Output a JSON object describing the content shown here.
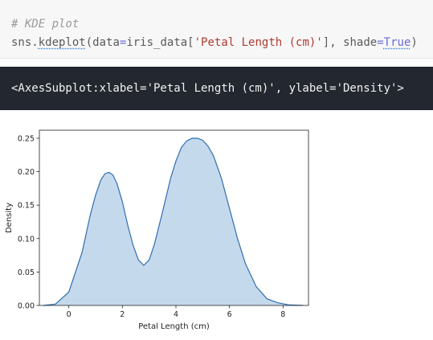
{
  "code_cell": {
    "comment": "# KDE plot",
    "func": "sns.",
    "func_name": "kdeplot",
    "open": "(",
    "arg1_name": "data",
    "eq1": "=",
    "arg1_obj": "iris_data[",
    "arg1_str": "'Petal Length (cm)'",
    "arg1_close": "], ",
    "arg2_name": "shade",
    "eq2": "=",
    "arg2_val": "True",
    "close": ")"
  },
  "output": {
    "text": "<AxesSubplot:xlabel='Petal Length (cm)', ylabel='Density'>"
  },
  "colors": {
    "line": "#2f6fae",
    "fill": "#c5d9ec"
  },
  "chart_data": {
    "type": "area",
    "xlabel": "Petal Length (cm)",
    "ylabel": "Density",
    "xlim": [
      -1.1,
      8.95
    ],
    "ylim": [
      0,
      0.262
    ],
    "xticks": [
      0,
      2,
      4,
      6,
      8
    ],
    "yticks": [
      0.0,
      0.05,
      0.1,
      0.15,
      0.2,
      0.25
    ],
    "ytick_labels": [
      "0.00",
      "0.05",
      "0.10",
      "0.15",
      "0.20",
      "0.25"
    ],
    "grid": false,
    "series": [
      {
        "x": [
          -0.95,
          -0.5,
          0,
          0.5,
          0.8,
          1.0,
          1.2,
          1.35,
          1.5,
          1.65,
          1.8,
          2.0,
          2.2,
          2.4,
          2.6,
          2.8,
          3.0,
          3.2,
          3.5,
          3.8,
          4.0,
          4.2,
          4.4,
          4.6,
          4.8,
          5.0,
          5.2,
          5.4,
          5.7,
          6.0,
          6.3,
          6.6,
          7.0,
          7.4,
          7.8,
          8.2,
          8.75
        ],
        "y": [
          0.0,
          0.002,
          0.02,
          0.08,
          0.135,
          0.165,
          0.188,
          0.197,
          0.199,
          0.195,
          0.182,
          0.155,
          0.12,
          0.09,
          0.068,
          0.06,
          0.068,
          0.092,
          0.14,
          0.19,
          0.216,
          0.236,
          0.246,
          0.25,
          0.25,
          0.247,
          0.238,
          0.224,
          0.19,
          0.145,
          0.1,
          0.062,
          0.028,
          0.01,
          0.004,
          0.001,
          0.0
        ]
      }
    ]
  }
}
